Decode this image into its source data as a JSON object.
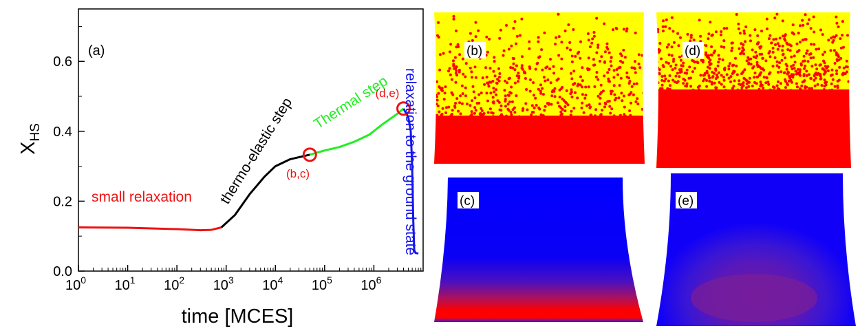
{
  "panel_a": {
    "label": "(a)",
    "xlabel": "time [MCES]",
    "ylabel_main": "X",
    "ylabel_sub": "HS",
    "x_ticks": [
      {
        "base": "10",
        "exp": "0"
      },
      {
        "base": "10",
        "exp": "1"
      },
      {
        "base": "10",
        "exp": "2"
      },
      {
        "base": "10",
        "exp": "3"
      },
      {
        "base": "10",
        "exp": "4"
      },
      {
        "base": "10",
        "exp": "5"
      },
      {
        "base": "10",
        "exp": "6"
      }
    ],
    "y_ticks": [
      "0.0",
      "0.2",
      "0.4",
      "0.6"
    ],
    "annotations": {
      "small_relaxation": "small relaxation",
      "thermo_elastic": "thermo-elastic step",
      "thermal": "Thermal step",
      "relaxation_ground": "relaxation to the ground state",
      "marker_bc": "(b,c)",
      "marker_de": "(d,e)"
    }
  },
  "panels": {
    "b": "(b)",
    "c": "(c)",
    "d": "(d)",
    "e": "(e)"
  },
  "colors": {
    "small_relaxation": "#ee1111",
    "thermo_elastic": "#000000",
    "thermal": "#22ee22",
    "ground": "#1515ee",
    "yellow": "#ffff00",
    "red": "#ff0000",
    "blue": "#0000ff"
  },
  "chart_data": {
    "type": "line",
    "xscale": "log",
    "xlim": [
      1,
      10000000
    ],
    "ylim": [
      0,
      0.75
    ],
    "xlabel": "time [MCES]",
    "ylabel": "X_HS",
    "legend": "none",
    "grid": false,
    "series": [
      {
        "name": "small relaxation",
        "color": "#ee1111",
        "x": [
          1,
          10,
          100,
          300,
          500,
          800
        ],
        "y": [
          0.125,
          0.124,
          0.12,
          0.117,
          0.118,
          0.125
        ]
      },
      {
        "name": "thermo-elastic step",
        "color": "#000000",
        "x": [
          800,
          1500,
          3000,
          6000,
          10000,
          20000,
          40000,
          50000
        ],
        "y": [
          0.125,
          0.16,
          0.22,
          0.27,
          0.3,
          0.32,
          0.33,
          0.333
        ]
      },
      {
        "name": "Thermal step",
        "color": "#22ee22",
        "x": [
          50000,
          100000,
          200000,
          400000,
          800000,
          1500000,
          3000000,
          4000000
        ],
        "y": [
          0.333,
          0.345,
          0.355,
          0.37,
          0.39,
          0.42,
          0.45,
          0.465
        ]
      },
      {
        "name": "relaxation to the ground state",
        "color": "#1515ee",
        "x": [
          4000000,
          5000000,
          5600000,
          6000000,
          6300000,
          6600000,
          7000000,
          8000000
        ],
        "y": [
          0.465,
          0.44,
          0.4,
          0.3,
          0.15,
          0.06,
          0.052,
          0.05
        ]
      }
    ],
    "markers": [
      {
        "label": "(b,c)",
        "x": 50000,
        "y": 0.333
      },
      {
        "label": "(d,e)",
        "x": 4000000,
        "y": 0.465
      }
    ]
  }
}
